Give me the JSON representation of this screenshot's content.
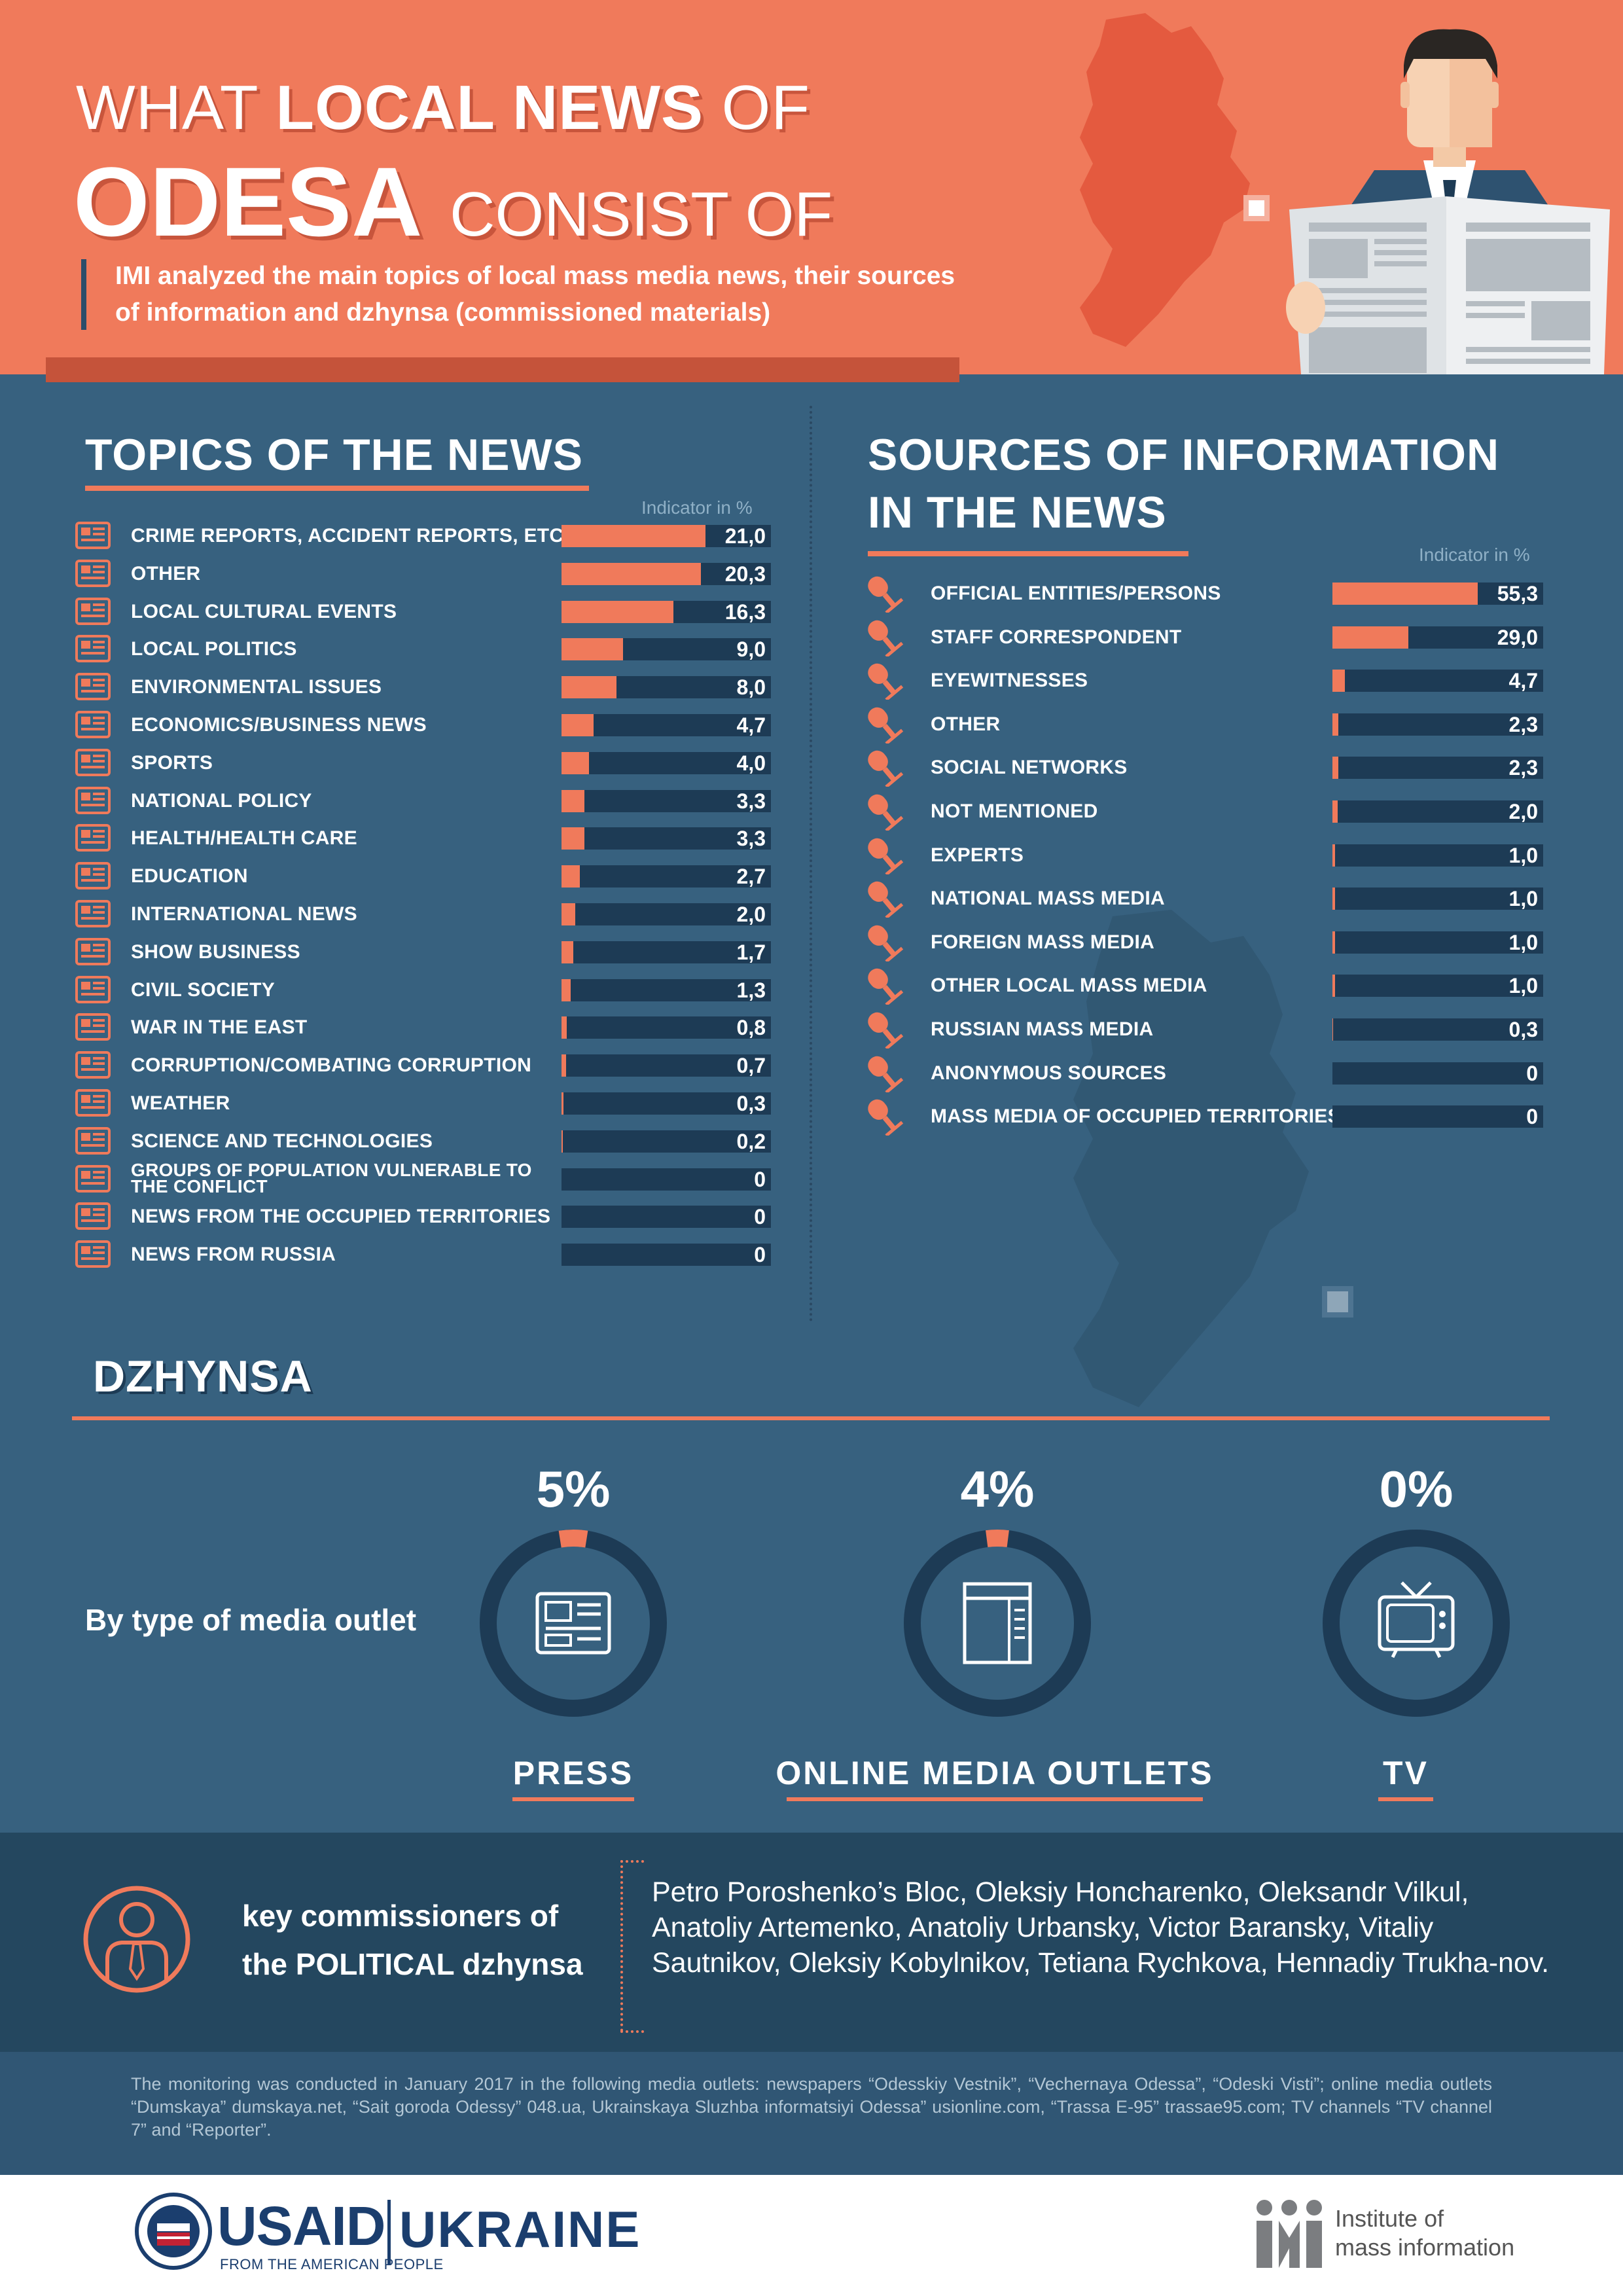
{
  "header": {
    "title_prefix": "WHAT",
    "title_bold": "LOCAL NEWS",
    "title_suffix": "OF",
    "title_line2_bold": "ODESA",
    "title_line2_rest": "CONSIST OF",
    "subtitle": "IMI analyzed the main topics of local mass media news, their sources of information and dzhynsa (commissioned materials)"
  },
  "topics": {
    "title": "TOPICS OF THE NEWS",
    "indicator_label": "Indicator in %",
    "items": [
      {
        "label": "CRIME REPORTS, ACCIDENT REPORTS, ETC.",
        "value": "21,0",
        "num": 21.0
      },
      {
        "label": "OTHER",
        "value": "20,3",
        "num": 20.3
      },
      {
        "label": "LOCAL CULTURAL EVENTS",
        "value": "16,3",
        "num": 16.3
      },
      {
        "label": "LOCAL POLITICS",
        "value": "9,0",
        "num": 9.0
      },
      {
        "label": "ENVIRONMENTAL ISSUES",
        "value": "8,0",
        "num": 8.0
      },
      {
        "label": "ECONOMICS/BUSINESS NEWS",
        "value": "4,7",
        "num": 4.7
      },
      {
        "label": "SPORTS",
        "value": "4,0",
        "num": 4.0
      },
      {
        "label": "NATIONAL POLICY",
        "value": "3,3",
        "num": 3.3
      },
      {
        "label": "HEALTH/HEALTH CARE",
        "value": "3,3",
        "num": 3.3
      },
      {
        "label": "EDUCATION",
        "value": "2,7",
        "num": 2.7
      },
      {
        "label": "INTERNATIONAL NEWS",
        "value": "2,0",
        "num": 2.0
      },
      {
        "label": "SHOW BUSINESS",
        "value": "1,7",
        "num": 1.7
      },
      {
        "label": "CIVIL SOCIETY",
        "value": "1,3",
        "num": 1.3
      },
      {
        "label": "WAR IN THE EAST",
        "value": "0,8",
        "num": 0.8
      },
      {
        "label": "CORRUPTION/COMBATING CORRUPTION",
        "value": "0,7",
        "num": 0.7
      },
      {
        "label": "WEATHER",
        "value": "0,3",
        "num": 0.3
      },
      {
        "label": "SCIENCE AND TECHNOLOGIES",
        "value": "0,2",
        "num": 0.2
      },
      {
        "label": "GROUPS OF POPULATION VULNERABLE TO THE CONFLICT",
        "value": "0",
        "num": 0
      },
      {
        "label": "NEWS FROM THE OCCUPIED TERRITORIES",
        "value": "0",
        "num": 0
      },
      {
        "label": "NEWS FROM RUSSIA",
        "value": "0",
        "num": 0
      }
    ]
  },
  "sources": {
    "title_line1": "SOURCES OF INFORMATION",
    "title_line2": "IN THE NEWS",
    "indicator_label": "Indicator in %",
    "items": [
      {
        "label": "OFFICIAL ENTITIES/PERSONS",
        "value": "55,3",
        "num": 55.3
      },
      {
        "label": "STAFF CORRESPONDENT",
        "value": "29,0",
        "num": 29.0
      },
      {
        "label": "EYEWITNESSES",
        "value": "4,7",
        "num": 4.7
      },
      {
        "label": "OTHER",
        "value": "2,3",
        "num": 2.3
      },
      {
        "label": "SOCIAL NETWORKS",
        "value": "2,3",
        "num": 2.3
      },
      {
        "label": "NOT MENTIONED",
        "value": "2,0",
        "num": 2.0
      },
      {
        "label": "EXPERTS",
        "value": "1,0",
        "num": 1.0
      },
      {
        "label": "NATIONAL MASS MEDIA",
        "value": "1,0",
        "num": 1.0
      },
      {
        "label": "FOREIGN MASS MEDIA",
        "value": "1,0",
        "num": 1.0
      },
      {
        "label": "OTHER LOCAL MASS MEDIA",
        "value": "1,0",
        "num": 1.0
      },
      {
        "label": "RUSSIAN MASS MEDIA",
        "value": "0,3",
        "num": 0.3
      },
      {
        "label": "ANONYMOUS SOURCES",
        "value": "0",
        "num": 0
      },
      {
        "label": "MASS MEDIA OF OCCUPIED TERRITORIES",
        "value": "0",
        "num": 0
      }
    ]
  },
  "dzhynsa": {
    "title": "DZHYNSA",
    "by_type_label": "By type of media outlet",
    "outlets": [
      {
        "label": "PRESS",
        "percent": "5%",
        "num": 5,
        "icon": "newspaper-icon"
      },
      {
        "label": "ONLINE MEDIA OUTLETS",
        "percent": "4%",
        "num": 4,
        "icon": "browser-window-icon"
      },
      {
        "label": "TV",
        "percent": "0%",
        "num": 0,
        "icon": "tv-icon"
      }
    ]
  },
  "commissioners": {
    "label_line1": "key commissioners of",
    "label_line2": "the POLITICAL dzhynsa",
    "names": "Petro Poroshenko’s Bloc, Oleksiy Honcharenko, Oleksandr Vilkul, Anatoliy Artemenko, Anatoliy Urbansky, Victor Baransky, Vitaliy Sautnikov, Oleksiy Kobylnikov, Tetiana Rychkova, Hennadiy Trukha-nov."
  },
  "footnote": "The monitoring was conducted in January 2017 in the following media outlets: newspapers “Odesskiy Vestnik”, “Vechernaya Odessa”, “Odeski Visti”; online media outlets “Dumskaya” dumskaya.net, “Sait goroda Odessy” 048.ua, Ukrainskaya Sluzhba informatsiyi Odessa” usionline.com, “Trassa E-95” trassae95.com; TV channels “TV channel 7” and “Reporter”.",
  "footer": {
    "usaid": "USAID",
    "usaid_tagline": "FROM THE AMERICAN PEOPLE",
    "ukraine": "UKRAINE",
    "imi_line1": "Institute of",
    "imi_line2": "mass information"
  },
  "colors": {
    "accent": "#f07a5b",
    "background": "#37617f",
    "dark": "#1d3b55",
    "header_shadow": "#c8553c"
  }
}
